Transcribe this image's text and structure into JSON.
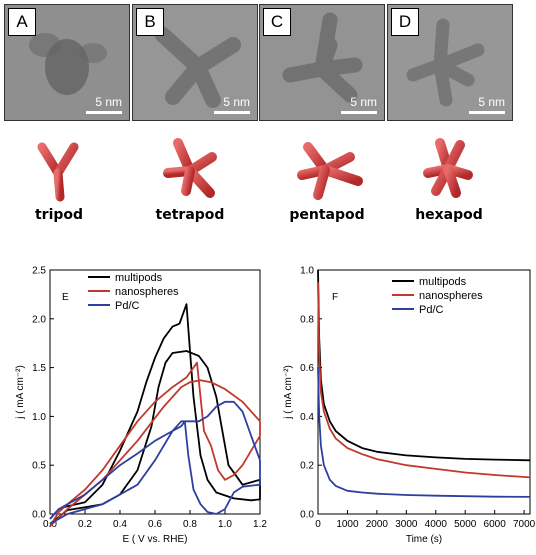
{
  "tem_panels": [
    {
      "letter": "A",
      "scale": "5 nm"
    },
    {
      "letter": "B",
      "scale": "5 nm"
    },
    {
      "letter": "C",
      "scale": "5 nm"
    },
    {
      "letter": "D",
      "scale": "5 nm"
    }
  ],
  "pods": [
    {
      "label": "tripod"
    },
    {
      "label": "tetrapod"
    },
    {
      "label": "pentapod"
    },
    {
      "label": "hexapod"
    }
  ],
  "colors": {
    "multipods": "#000000",
    "nanospheres": "#c0392b",
    "pdc": "#2e3fa0",
    "pod": "#d04a4a"
  },
  "chart_data": [
    {
      "type": "line",
      "panel_label": "E",
      "xlabel": "E ( V vs. RHE)",
      "ylabel": "j ( mA cm⁻²)",
      "xlim": [
        0.0,
        1.2
      ],
      "ylim": [
        0.0,
        2.5
      ],
      "xticks": [
        "0.0",
        "0.2",
        "0.4",
        "0.6",
        "0.8",
        "1.0",
        "1.2"
      ],
      "yticks": [
        "0.0",
        "0.5",
        "1.0",
        "1.5",
        "2.0",
        "2.5"
      ],
      "legend": "top-left",
      "series": [
        {
          "name": "multipods",
          "color": "#000000",
          "points": [
            [
              0.0,
              -0.05
            ],
            [
              0.05,
              0.05
            ],
            [
              0.1,
              0.08
            ],
            [
              0.2,
              0.12
            ],
            [
              0.3,
              0.3
            ],
            [
              0.4,
              0.65
            ],
            [
              0.5,
              1.05
            ],
            [
              0.55,
              1.35
            ],
            [
              0.6,
              1.6
            ],
            [
              0.65,
              1.8
            ],
            [
              0.7,
              1.92
            ],
            [
              0.74,
              1.95
            ],
            [
              0.76,
              2.05
            ],
            [
              0.78,
              2.15
            ],
            [
              0.79,
              1.9
            ],
            [
              0.82,
              1.2
            ],
            [
              0.86,
              0.6
            ],
            [
              0.9,
              0.35
            ],
            [
              0.95,
              0.22
            ],
            [
              1.05,
              0.16
            ],
            [
              1.15,
              0.14
            ],
            [
              1.2,
              0.15
            ],
            [
              1.2,
              0.35
            ],
            [
              1.1,
              0.3
            ],
            [
              1.02,
              0.5
            ],
            [
              0.98,
              0.9
            ],
            [
              0.95,
              1.2
            ],
            [
              0.9,
              1.5
            ],
            [
              0.85,
              1.62
            ],
            [
              0.78,
              1.67
            ],
            [
              0.7,
              1.65
            ],
            [
              0.66,
              1.55
            ],
            [
              0.62,
              1.3
            ],
            [
              0.58,
              0.9
            ],
            [
              0.5,
              0.45
            ],
            [
              0.4,
              0.2
            ],
            [
              0.3,
              0.1
            ],
            [
              0.2,
              0.07
            ],
            [
              0.1,
              0.04
            ],
            [
              0.0,
              -0.1
            ]
          ]
        },
        {
          "name": "nanospheres",
          "color": "#c0392b",
          "points": [
            [
              0.0,
              -0.15
            ],
            [
              0.05,
              0.02
            ],
            [
              0.1,
              0.1
            ],
            [
              0.2,
              0.25
            ],
            [
              0.3,
              0.45
            ],
            [
              0.4,
              0.7
            ],
            [
              0.5,
              0.95
            ],
            [
              0.6,
              1.15
            ],
            [
              0.7,
              1.3
            ],
            [
              0.78,
              1.4
            ],
            [
              0.82,
              1.5
            ],
            [
              0.84,
              1.55
            ],
            [
              0.86,
              1.2
            ],
            [
              0.88,
              0.85
            ],
            [
              0.92,
              0.7
            ],
            [
              0.96,
              0.45
            ],
            [
              1.0,
              0.35
            ],
            [
              1.05,
              0.4
            ],
            [
              1.1,
              0.5
            ],
            [
              1.15,
              0.65
            ],
            [
              1.2,
              0.8
            ],
            [
              1.2,
              0.95
            ],
            [
              1.1,
              1.15
            ],
            [
              1.0,
              1.28
            ],
            [
              0.92,
              1.35
            ],
            [
              0.86,
              1.37
            ],
            [
              0.8,
              1.35
            ],
            [
              0.75,
              1.3
            ],
            [
              0.65,
              1.1
            ],
            [
              0.5,
              0.75
            ],
            [
              0.4,
              0.55
            ],
            [
              0.3,
              0.35
            ],
            [
              0.2,
              0.2
            ],
            [
              0.1,
              0.05
            ],
            [
              0.0,
              -0.2
            ]
          ]
        },
        {
          "name": "Pd/C",
          "color": "#2e3fa0",
          "points": [
            [
              0.0,
              -0.05
            ],
            [
              0.05,
              0.05
            ],
            [
              0.1,
              0.1
            ],
            [
              0.2,
              0.2
            ],
            [
              0.3,
              0.35
            ],
            [
              0.4,
              0.5
            ],
            [
              0.5,
              0.62
            ],
            [
              0.6,
              0.75
            ],
            [
              0.7,
              0.85
            ],
            [
              0.75,
              0.9
            ],
            [
              0.77,
              0.95
            ],
            [
              0.79,
              0.6
            ],
            [
              0.82,
              0.25
            ],
            [
              0.86,
              0.1
            ],
            [
              0.9,
              0.02
            ],
            [
              0.95,
              0.0
            ],
            [
              1.0,
              0.05
            ],
            [
              1.05,
              0.22
            ],
            [
              1.1,
              0.28
            ],
            [
              1.2,
              0.3
            ],
            [
              1.2,
              0.55
            ],
            [
              1.15,
              0.8
            ],
            [
              1.1,
              1.05
            ],
            [
              1.05,
              1.15
            ],
            [
              1.0,
              1.15
            ],
            [
              0.95,
              1.1
            ],
            [
              0.9,
              1.0
            ],
            [
              0.85,
              0.95
            ],
            [
              0.8,
              0.95
            ],
            [
              0.75,
              0.95
            ],
            [
              0.7,
              0.85
            ],
            [
              0.6,
              0.55
            ],
            [
              0.5,
              0.3
            ],
            [
              0.4,
              0.2
            ],
            [
              0.3,
              0.1
            ],
            [
              0.2,
              0.05
            ],
            [
              0.1,
              0.0
            ],
            [
              0.0,
              -0.1
            ]
          ]
        }
      ]
    },
    {
      "type": "line",
      "panel_label": "F",
      "xlabel": "Time (s)",
      "ylabel": "j ( mA cm⁻²)",
      "xlim": [
        0,
        7200
      ],
      "ylim": [
        0.0,
        1.0
      ],
      "xticks": [
        "0",
        "1000",
        "2000",
        "3000",
        "4000",
        "5000",
        "6000",
        "7000"
      ],
      "yticks": [
        "0.0",
        "0.2",
        "0.4",
        "0.6",
        "0.8",
        "1.0"
      ],
      "legend": "top-right",
      "series": [
        {
          "name": "multipods",
          "color": "#000000",
          "points": [
            [
              0,
              1.0
            ],
            [
              40,
              0.72
            ],
            [
              100,
              0.55
            ],
            [
              200,
              0.45
            ],
            [
              400,
              0.38
            ],
            [
              600,
              0.34
            ],
            [
              1000,
              0.3
            ],
            [
              1500,
              0.27
            ],
            [
              2000,
              0.255
            ],
            [
              3000,
              0.24
            ],
            [
              4000,
              0.232
            ],
            [
              5000,
              0.226
            ],
            [
              6000,
              0.223
            ],
            [
              7200,
              0.22
            ]
          ]
        },
        {
          "name": "nanospheres",
          "color": "#c0392b",
          "points": [
            [
              0,
              0.95
            ],
            [
              40,
              0.65
            ],
            [
              100,
              0.5
            ],
            [
              200,
              0.42
            ],
            [
              400,
              0.35
            ],
            [
              600,
              0.31
            ],
            [
              1000,
              0.27
            ],
            [
              1500,
              0.245
            ],
            [
              2000,
              0.225
            ],
            [
              3000,
              0.2
            ],
            [
              4000,
              0.185
            ],
            [
              5000,
              0.17
            ],
            [
              6000,
              0.16
            ],
            [
              7200,
              0.15
            ]
          ]
        },
        {
          "name": "Pd/C",
          "color": "#2e3fa0",
          "points": [
            [
              0,
              0.6
            ],
            [
              40,
              0.4
            ],
            [
              100,
              0.28
            ],
            [
              200,
              0.2
            ],
            [
              400,
              0.14
            ],
            [
              600,
              0.115
            ],
            [
              1000,
              0.095
            ],
            [
              1500,
              0.088
            ],
            [
              2000,
              0.083
            ],
            [
              3000,
              0.078
            ],
            [
              4000,
              0.075
            ],
            [
              5000,
              0.073
            ],
            [
              6000,
              0.071
            ],
            [
              7200,
              0.07
            ]
          ]
        }
      ]
    }
  ]
}
